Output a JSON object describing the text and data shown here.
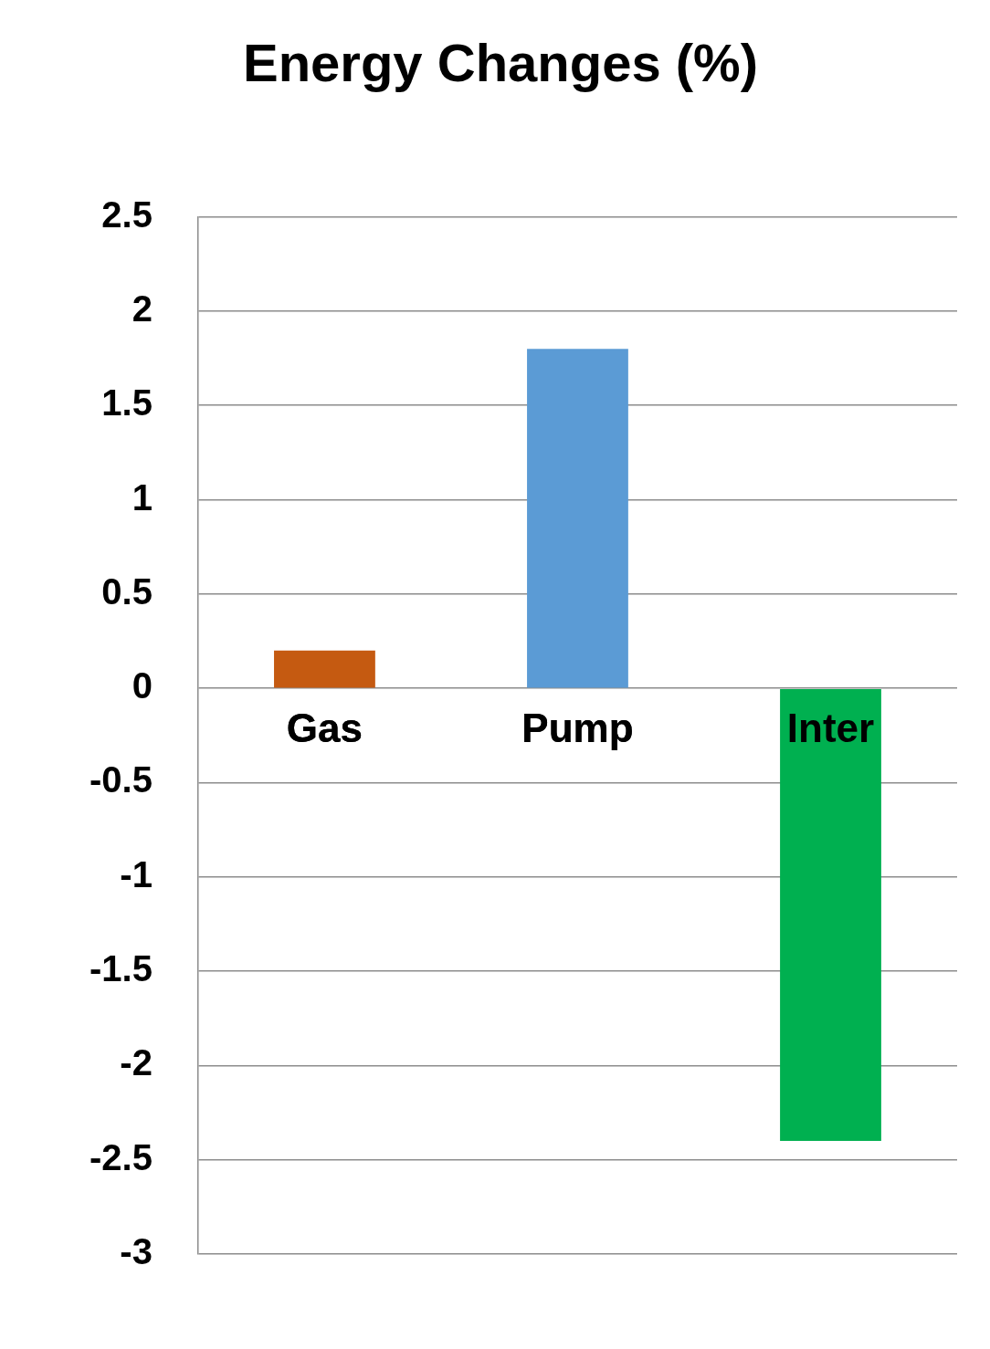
{
  "chart_data": {
    "type": "bar",
    "title": "Energy Changes (%)",
    "categories": [
      "Gas",
      "Pump",
      "Inter"
    ],
    "values": [
      0.2,
      1.8,
      -2.4
    ],
    "colors": [
      "#c55a11",
      "#5b9bd5",
      "#00b050"
    ],
    "ylim": [
      -3,
      2.5
    ],
    "yticks": [
      2.5,
      2,
      1.5,
      1,
      0.5,
      0,
      -0.5,
      -1,
      -1.5,
      -2,
      -2.5,
      -3
    ],
    "grid": "y",
    "legend": false
  }
}
